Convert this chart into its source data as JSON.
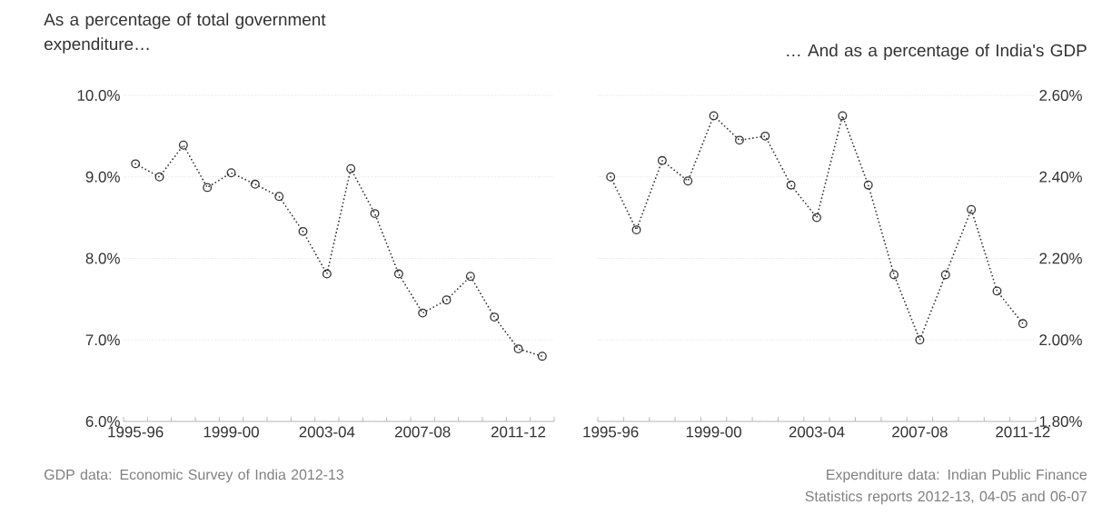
{
  "chart_data": [
    {
      "type": "line",
      "title": "As a percentage of total government expenditure…",
      "categories": [
        "1995-96",
        null,
        null,
        null,
        "1999-00",
        null,
        null,
        null,
        "2003-04",
        null,
        null,
        null,
        "2007-08",
        null,
        null,
        null,
        "2011-12",
        null
      ],
      "values": [
        9.16,
        9.0,
        9.39,
        8.87,
        9.05,
        8.91,
        8.76,
        8.33,
        7.81,
        9.1,
        8.55,
        7.81,
        7.33,
        7.49,
        7.78,
        7.28,
        6.89,
        6.8
      ],
      "color": "#333333",
      "marker": "circle",
      "line_style": "dotted",
      "grid": "y",
      "ylim": [
        6,
        10
      ],
      "yticks": [
        {
          "value": 6,
          "label": "6.0%"
        },
        {
          "value": 7,
          "label": "7.0%"
        },
        {
          "value": 8,
          "label": "8.0%"
        },
        {
          "value": 9,
          "label": "9.0%"
        },
        {
          "value": 10,
          "label": "10.0%"
        }
      ],
      "annotations": [
        "GDP data: Economic Survey of India 2012-13"
      ]
    },
    {
      "type": "line",
      "title": "… And as a percentage of India's GDP",
      "categories": [
        "1995-96",
        null,
        null,
        null,
        "1999-00",
        null,
        null,
        null,
        "2003-04",
        null,
        null,
        null,
        "2007-08",
        null,
        null,
        null,
        "2011-12"
      ],
      "values": [
        2.4,
        2.27,
        2.44,
        2.39,
        2.55,
        2.49,
        2.5,
        2.38,
        2.3,
        2.55,
        2.38,
        2.16,
        2.0,
        2.16,
        2.32,
        2.12,
        2.04
      ],
      "color": "#333333",
      "marker": "circle",
      "line_style": "dotted",
      "grid": "y",
      "ylim": [
        1.8,
        2.6
      ],
      "yticks": [
        {
          "value": 1.8,
          "label": "1.80%"
        },
        {
          "value": 2.0,
          "label": "2.00%"
        },
        {
          "value": 2.2,
          "label": "2.20%"
        },
        {
          "value": 2.4,
          "label": "2.40%"
        },
        {
          "value": 2.6,
          "label": "2.60%"
        }
      ],
      "annotations": [
        "Expenditure data: Indian Public Finance Statistics reports 2012-13, 04-05 and 06-07"
      ]
    }
  ]
}
